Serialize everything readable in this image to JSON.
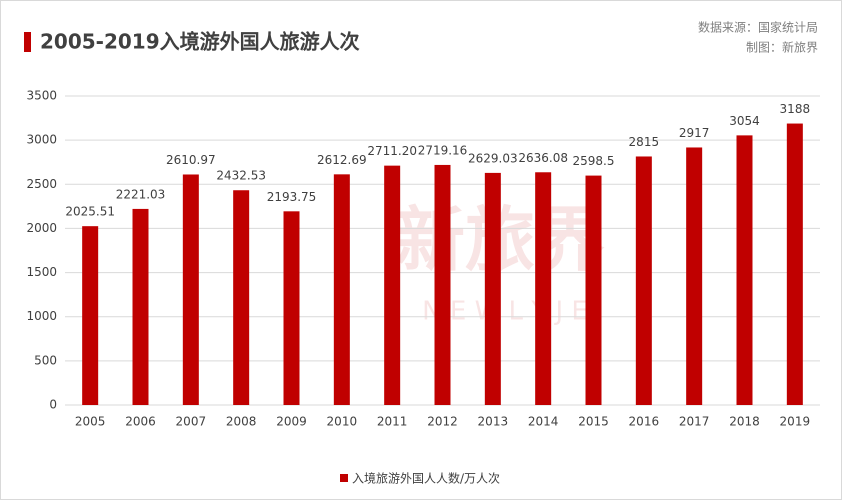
{
  "chart_data": {
    "type": "bar",
    "title": "2005-2019入境游外国人旅游人次",
    "source": "数据来源：国家统计局",
    "credit": "制图：新旅界",
    "watermark": "新旅界",
    "watermark_sub": "N E W L Y J E",
    "categories": [
      "2005",
      "2006",
      "2007",
      "2008",
      "2009",
      "2010",
      "2011",
      "2012",
      "2013",
      "2014",
      "2015",
      "2016",
      "2017",
      "2018",
      "2019"
    ],
    "series": [
      {
        "name": "入境旅游外国人人数/万人次",
        "color": "#c00000",
        "values": [
          2025.51,
          2221.03,
          2610.97,
          2432.53,
          2193.75,
          2612.69,
          2711.2,
          2719.16,
          2629.03,
          2636.08,
          2598.5,
          2815,
          2917,
          3054,
          3188
        ],
        "value_labels": [
          "2025.51",
          "2221.03",
          "2610.97",
          "2432.53",
          "2193.75",
          "2612.69",
          "2711.20",
          "2719.16",
          "2629.03",
          "2636.08",
          "2598.5",
          "2815",
          "2917",
          "3054",
          "3188"
        ]
      }
    ],
    "ylim": [
      0,
      3500
    ],
    "yticks": [
      0,
      500,
      1000,
      1500,
      2000,
      2500,
      3000,
      3500
    ],
    "grid": true,
    "legend": "bottom"
  }
}
